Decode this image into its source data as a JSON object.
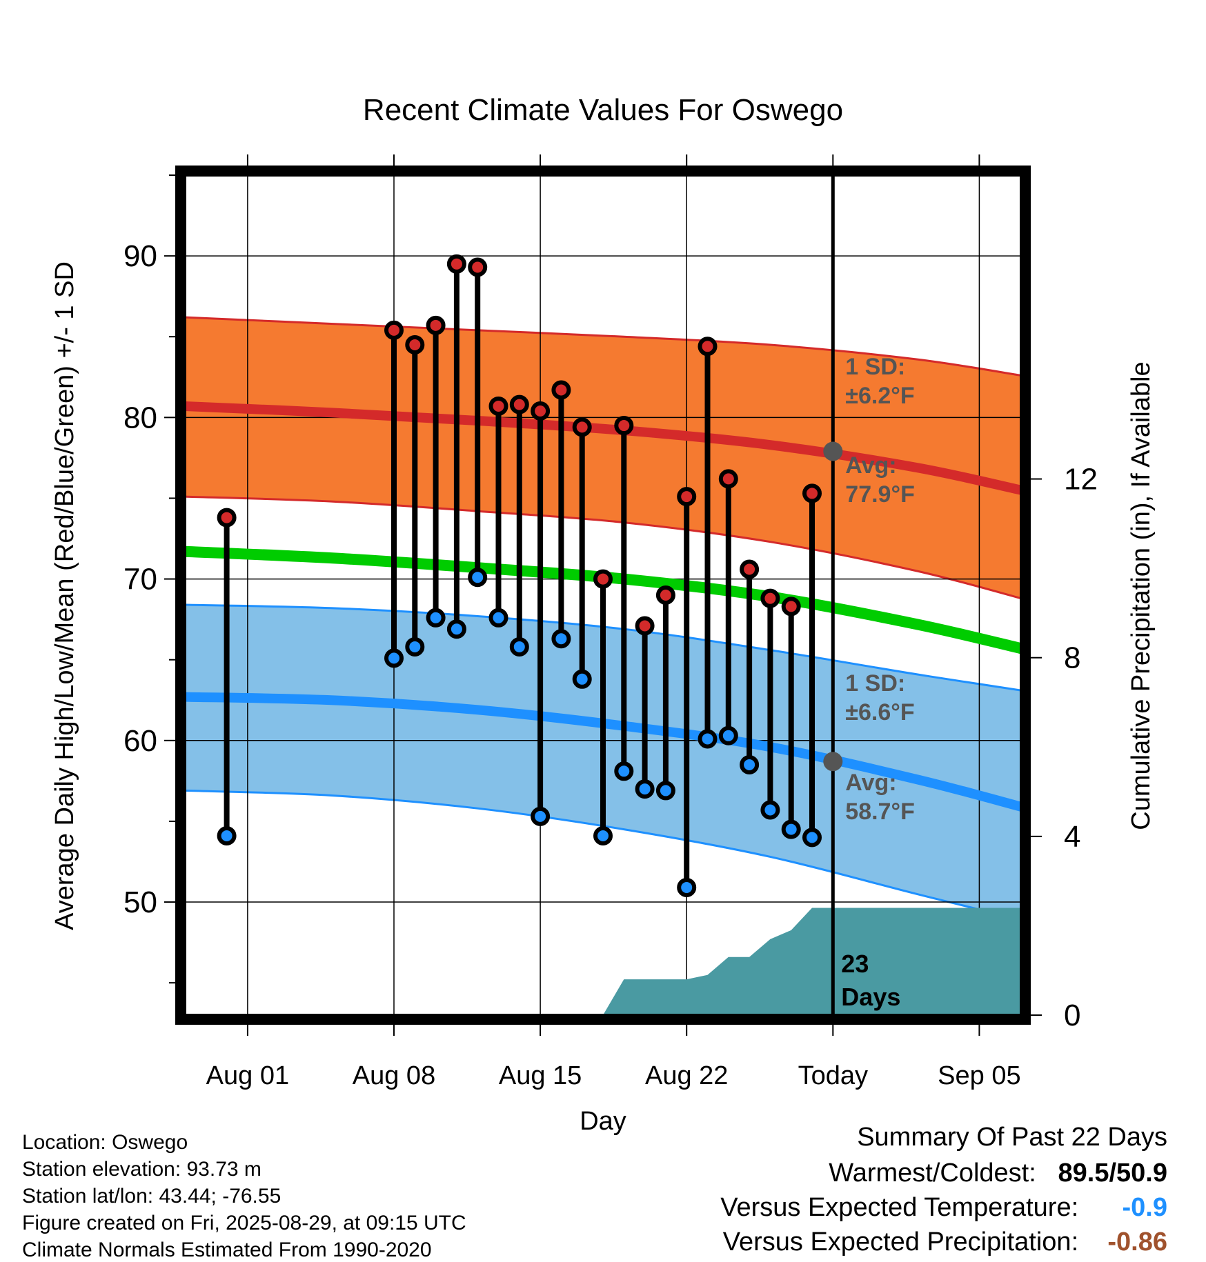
{
  "chart_data": {
    "type": "line",
    "title": "Recent Climate Values For Oswego",
    "xlabel": "Day",
    "ylabel": "Average Daily High/Low/Mean (Red/Blue/Green) +/- 1 SD",
    "y2label": "Cumulative Precipitation (in), If Available",
    "x_range": [
      "2025-07-29",
      "2025-09-07"
    ],
    "ylim": [
      43,
      95
    ],
    "y2lim": [
      0,
      18.8
    ],
    "yticks": [
      50,
      60,
      70,
      80,
      90
    ],
    "y2ticks": [
      0,
      4,
      8,
      12
    ],
    "xticks": [
      {
        "date": "2025-08-01",
        "label": "Aug 01"
      },
      {
        "date": "2025-08-08",
        "label": "Aug 08"
      },
      {
        "date": "2025-08-15",
        "label": "Aug 15"
      },
      {
        "date": "2025-08-22",
        "label": "Aug 22"
      },
      {
        "date": "2025-08-29",
        "label": "Today"
      },
      {
        "date": "2025-09-05",
        "label": "Sep 05"
      }
    ],
    "grid": true,
    "today": "2025-08-29",
    "normals": {
      "x": [
        "2025-07-29",
        "2025-08-05",
        "2025-08-12",
        "2025-08-19",
        "2025-08-26",
        "2025-09-02",
        "2025-09-07"
      ],
      "high_mean": [
        80.7,
        80.3,
        79.8,
        79.2,
        78.3,
        76.9,
        75.5
      ],
      "high_upper": [
        86.2,
        85.8,
        85.4,
        85.0,
        84.5,
        83.6,
        82.6
      ],
      "high_lower": [
        75.1,
        74.8,
        74.2,
        73.5,
        72.3,
        70.5,
        68.8
      ],
      "low_mean": [
        62.7,
        62.5,
        61.9,
        60.9,
        59.6,
        57.6,
        55.9
      ],
      "low_upper": [
        68.4,
        68.2,
        67.7,
        66.9,
        65.6,
        64.1,
        63.1
      ],
      "low_lower": [
        56.9,
        56.6,
        55.8,
        54.5,
        52.8,
        50.5,
        48.9
      ],
      "mean": [
        71.7,
        71.3,
        70.7,
        70.0,
        68.9,
        67.2,
        65.7
      ]
    },
    "observations": [
      {
        "date": "2025-07-31",
        "high": 73.8,
        "low": 54.1
      },
      {
        "date": "2025-08-08",
        "high": 85.4,
        "low": 65.1
      },
      {
        "date": "2025-08-09",
        "high": 84.5,
        "low": 65.8
      },
      {
        "date": "2025-08-10",
        "high": 85.7,
        "low": 67.6
      },
      {
        "date": "2025-08-11",
        "high": 89.5,
        "low": 66.9
      },
      {
        "date": "2025-08-12",
        "high": 89.3,
        "low": 70.1
      },
      {
        "date": "2025-08-13",
        "high": 80.7,
        "low": 67.6
      },
      {
        "date": "2025-08-14",
        "high": 80.8,
        "low": 65.8
      },
      {
        "date": "2025-08-15",
        "high": 80.4,
        "low": 55.3
      },
      {
        "date": "2025-08-16",
        "high": 81.7,
        "low": 66.3
      },
      {
        "date": "2025-08-17",
        "high": 79.4,
        "low": 63.8
      },
      {
        "date": "2025-08-18",
        "high": 70.0,
        "low": 54.1
      },
      {
        "date": "2025-08-19",
        "high": 79.5,
        "low": 58.1
      },
      {
        "date": "2025-08-20",
        "high": 67.1,
        "low": 57.0
      },
      {
        "date": "2025-08-21",
        "high": 69.0,
        "low": 56.9
      },
      {
        "date": "2025-08-22",
        "high": 75.1,
        "low": 50.9
      },
      {
        "date": "2025-08-23",
        "high": 84.4,
        "low": 60.1
      },
      {
        "date": "2025-08-24",
        "high": 76.2,
        "low": 60.3
      },
      {
        "date": "2025-08-25",
        "high": 70.6,
        "low": 58.5
      },
      {
        "date": "2025-08-26",
        "high": 68.8,
        "low": 55.7
      },
      {
        "date": "2025-08-27",
        "high": 68.3,
        "low": 54.5
      },
      {
        "date": "2025-08-28",
        "high": 75.3,
        "low": 54.0
      }
    ],
    "precipitation": {
      "x": [
        "2025-08-18",
        "2025-08-19",
        "2025-08-22",
        "2025-08-23",
        "2025-08-24",
        "2025-08-25",
        "2025-08-26",
        "2025-08-27",
        "2025-08-28",
        "2025-09-07"
      ],
      "cumulative": [
        0.0,
        0.8,
        0.8,
        0.9,
        1.3,
        1.3,
        1.7,
        1.9,
        2.4,
        2.4
      ]
    },
    "annotations": {
      "high_sd_label": "1 SD:",
      "high_sd_value": "±6.2°F",
      "high_avg_label": "Avg:",
      "high_avg_value": "77.9°F",
      "low_sd_label": "1 SD:",
      "low_sd_value": "±6.6°F",
      "low_avg_label": "Avg:",
      "low_avg_value": "58.7°F",
      "today_high_avg": 77.9,
      "today_low_avg": 58.7,
      "days_count": "23",
      "days_word": "Days"
    },
    "colors": {
      "high_band": "#f57a30",
      "high_line": "#d42a2a",
      "low_band": "#84c0e8",
      "low_line": "#1e90ff",
      "mean_line": "#00cc00",
      "precip": "#4a9aa2",
      "high_dot": "#d42a2a",
      "low_dot": "#1e90ff",
      "annotation": "#555555"
    }
  },
  "footer": {
    "location": "Location: Oswego",
    "elevation": "Station elevation: 93.73 m",
    "latlon": "Station lat/lon: 43.44; -76.55",
    "created": "Figure created on Fri, 2025-08-29, at 09:15 UTC",
    "normals": "Climate Normals Estimated From 1990-2020"
  },
  "summary": {
    "title": "Summary Of Past 22 Days",
    "warmest_label": "Warmest/Coldest:",
    "warmest_value": "89.5",
    "separator": "/",
    "coldest_value": "50.9",
    "temp_label": "Versus Expected Temperature:",
    "temp_value": "-0.9",
    "temp_color": "#1e90ff",
    "precip_label": "Versus Expected Precipitation:",
    "precip_value": "-0.86",
    "precip_color": "#a0522d"
  }
}
